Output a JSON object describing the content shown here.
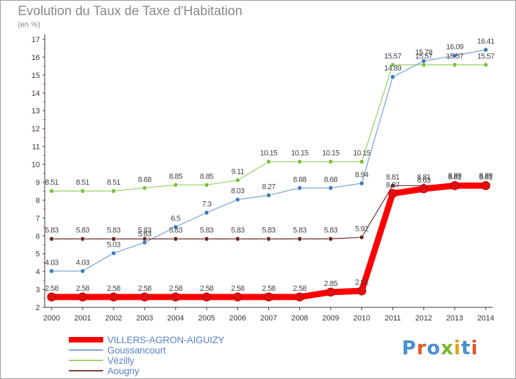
{
  "title": "Evolution du Taux de Taxe d'Habitation",
  "unit_label": "(en %)",
  "logo": {
    "letters": [
      "P",
      "r",
      "o",
      "x",
      "i",
      "t",
      "i"
    ],
    "colors": [
      "#4a8fd0",
      "#e05a2a",
      "#4a8fd0",
      "#7ab82e",
      "#e0a21a",
      "#4a8fd0",
      "#e05a2a"
    ]
  },
  "chart_data": {
    "type": "line",
    "title": "Evolution du Taux de Taxe d'Habitation",
    "ylabel": "(en %)",
    "xlabel": "",
    "ylim": [
      2,
      17
    ],
    "yticks": [
      2,
      3,
      4,
      5,
      6,
      7,
      8,
      9,
      10,
      11,
      12,
      13,
      14,
      15,
      16,
      17
    ],
    "grid": false,
    "legend_position": "bottom-left",
    "x": [
      "2000",
      "2001",
      "2002",
      "2003",
      "2004",
      "2005",
      "2006",
      "2007",
      "2008",
      "2009",
      "2010",
      "2011",
      "2012",
      "2013",
      "2014"
    ],
    "series": [
      {
        "name": "VILLERS-AGRON-AIGUIZY",
        "color": "#ff0000",
        "marker": "#e01010",
        "values": [
          2.58,
          2.58,
          2.58,
          2.58,
          2.58,
          2.58,
          2.58,
          2.58,
          2.58,
          2.85,
          2.92,
          8.37,
          8.63,
          8.81,
          8.81
        ],
        "labels": [
          "2.58",
          "2.58",
          "2.58",
          "2.58",
          "2.58",
          "2.58",
          "2.58",
          "2.58",
          "2.58",
          "2.85",
          "2.92",
          "8.37",
          "8.63",
          "8.81",
          "8.81"
        ]
      },
      {
        "name": "Goussancourt",
        "color": "#7aa6d6",
        "marker": "#3a7cc0",
        "values": [
          4.03,
          4.03,
          5.03,
          5.63,
          6.5,
          7.3,
          8.03,
          8.27,
          8.68,
          8.68,
          8.94,
          14.89,
          15.78,
          16.09,
          16.41
        ],
        "labels": [
          "4.03",
          "4.03",
          "5.03",
          "5.63",
          "6.5",
          "7.3",
          "8.03",
          "8.27",
          "8.68",
          "8.68",
          "8.94",
          "14.89",
          "15.78",
          "16.09",
          "16.41"
        ]
      },
      {
        "name": "Vézilly",
        "color": "#9ad26a",
        "marker": "#7ac23c",
        "values": [
          8.51,
          8.51,
          8.51,
          8.68,
          8.85,
          8.85,
          9.11,
          10.15,
          10.15,
          10.15,
          10.15,
          15.57,
          15.57,
          15.57,
          15.57
        ],
        "labels": [
          "8.51",
          "8.51",
          "8.51",
          "8.68",
          "8.85",
          "8.85",
          "9.11",
          "10.15",
          "10.15",
          "10.15",
          "10.15",
          "15.57",
          "15.57",
          "15.57",
          "15.57"
        ]
      },
      {
        "name": "Aougny",
        "color": "#7a3a3a",
        "marker": "#6a2a2a",
        "values": [
          5.83,
          5.83,
          5.83,
          5.83,
          5.83,
          5.83,
          5.83,
          5.83,
          5.83,
          5.83,
          5.92,
          8.81,
          8.81,
          8.89,
          8.89
        ],
        "labels": [
          "5.83",
          "5.83",
          "5.83",
          "5.83",
          "5.83",
          "5.83",
          "5.83",
          "5.83",
          "5.83",
          "5.83",
          "5.92",
          "8.81",
          "8.81",
          "8.89",
          "8.89"
        ]
      }
    ]
  }
}
